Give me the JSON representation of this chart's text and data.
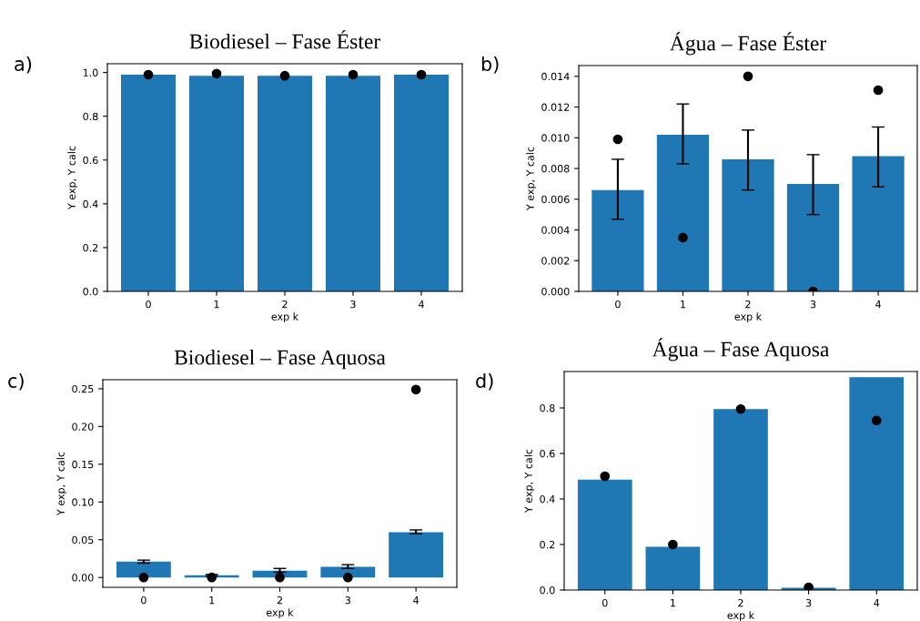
{
  "chart_data": [
    {
      "type": "bar",
      "title": "Biodiesel – Fase Éster",
      "xlabel": "exp k",
      "ylabel": "Y exp, Y calc",
      "annotations": [
        "a)"
      ],
      "categories": [
        "0",
        "1",
        "2",
        "3",
        "4"
      ],
      "ylim": [
        0,
        1.04
      ],
      "yticks": [
        {
          "value": 0,
          "label": "0.0"
        },
        {
          "value": 0.2,
          "label": "0.2"
        },
        {
          "value": 0.4,
          "label": "0.4"
        },
        {
          "value": 0.6,
          "label": "0.6"
        },
        {
          "value": 0.8,
          "label": "0.8"
        },
        {
          "value": 1,
          "label": "1.0"
        }
      ],
      "grid": false,
      "marker": "circle",
      "series": [
        {
          "color": "#1f77b4",
          "values": [
            0.99,
            0.985,
            0.985,
            0.985,
            0.99
          ]
        },
        {
          "type": "scatter",
          "color": "#000000",
          "x": [
            "0",
            "1",
            "2",
            "3",
            "4"
          ],
          "values": [
            0.99,
            0.995,
            0.985,
            0.99,
            0.99
          ]
        }
      ]
    },
    {
      "type": "bar",
      "title": "Água – Fase Éster",
      "xlabel": "exp k",
      "ylabel": "Y exp, Y calc",
      "annotations": [
        "b)"
      ],
      "categories": [
        "0",
        "1",
        "2",
        "3",
        "4"
      ],
      "ylim": [
        0,
        0.0147
      ],
      "yticks": [
        {
          "value": 0,
          "label": "0.000"
        },
        {
          "value": 0.002,
          "label": "0.002"
        },
        {
          "value": 0.004,
          "label": "0.004"
        },
        {
          "value": 0.006,
          "label": "0.006"
        },
        {
          "value": 0.008,
          "label": "0.008"
        },
        {
          "value": 0.01,
          "label": "0.010"
        },
        {
          "value": 0.012,
          "label": "0.012"
        },
        {
          "value": 0.014,
          "label": "0.014"
        }
      ],
      "grid": false,
      "marker": "circle",
      "series": [
        {
          "color": "#1f77b4",
          "values": [
            0.0066,
            0.0102,
            0.0086,
            0.007,
            0.0088
          ],
          "errors": [
            [
              0.0047,
              0.0086
            ],
            [
              0.0083,
              0.0122
            ],
            [
              0.0066,
              0.0105
            ],
            [
              0.005,
              0.0089
            ],
            [
              0.0068,
              0.0107
            ]
          ]
        },
        {
          "type": "scatter",
          "color": "#000000",
          "x": [
            "0",
            "1",
            "2",
            "3",
            "4"
          ],
          "values": [
            0.0099,
            0.0035,
            0.014,
            0.0,
            0.0131
          ]
        }
      ]
    },
    {
      "type": "bar",
      "title": "Biodiesel – Fase Aquosa",
      "xlabel": "exp k",
      "ylabel": "Y exp, Y calc",
      "annotations": [
        "c)"
      ],
      "categories": [
        "0",
        "1",
        "2",
        "3",
        "4"
      ],
      "ylim": [
        -0.013,
        0.262
      ],
      "yticks": [
        {
          "value": 0,
          "label": "0.00"
        },
        {
          "value": 0.05,
          "label": "0.05"
        },
        {
          "value": 0.1,
          "label": "0.10"
        },
        {
          "value": 0.15,
          "label": "0.15"
        },
        {
          "value": 0.2,
          "label": "0.20"
        },
        {
          "value": 0.25,
          "label": "0.25"
        }
      ],
      "grid": false,
      "marker": "circle",
      "series": [
        {
          "color": "#1f77b4",
          "values": [
            0.021,
            0.003,
            0.009,
            0.014,
            0.06
          ],
          "errors": [
            [
              0.019,
              0.023
            ],
            [
              0.002,
              0.004
            ],
            [
              0.007,
              0.012
            ],
            [
              0.012,
              0.017
            ],
            [
              0.058,
              0.063
            ]
          ]
        },
        {
          "type": "scatter",
          "color": "#000000",
          "x": [
            "0",
            "1",
            "2",
            "3",
            "4"
          ],
          "values": [
            0.0,
            0.0,
            0.0,
            0.0,
            0.249
          ]
        }
      ]
    },
    {
      "type": "bar",
      "title": "Água – Fase Aquosa",
      "xlabel": "exp k",
      "ylabel": "Y exp, Y calc",
      "annotations": [
        "d)"
      ],
      "categories": [
        "0",
        "1",
        "2",
        "3",
        "4"
      ],
      "ylim": [
        0,
        0.96
      ],
      "yticks": [
        {
          "value": 0,
          "label": "0.0"
        },
        {
          "value": 0.2,
          "label": "0.2"
        },
        {
          "value": 0.4,
          "label": "0.4"
        },
        {
          "value": 0.6,
          "label": "0.6"
        },
        {
          "value": 0.8,
          "label": "0.8"
        }
      ],
      "grid": false,
      "marker": "circle",
      "series": [
        {
          "color": "#1f77b4",
          "values": [
            0.485,
            0.19,
            0.795,
            0.01,
            0.935
          ]
        },
        {
          "type": "scatter",
          "color": "#000000",
          "x": [
            "0",
            "1",
            "2",
            "3",
            "4"
          ],
          "values": [
            0.5,
            0.2,
            0.795,
            0.012,
            0.745
          ]
        }
      ]
    }
  ]
}
